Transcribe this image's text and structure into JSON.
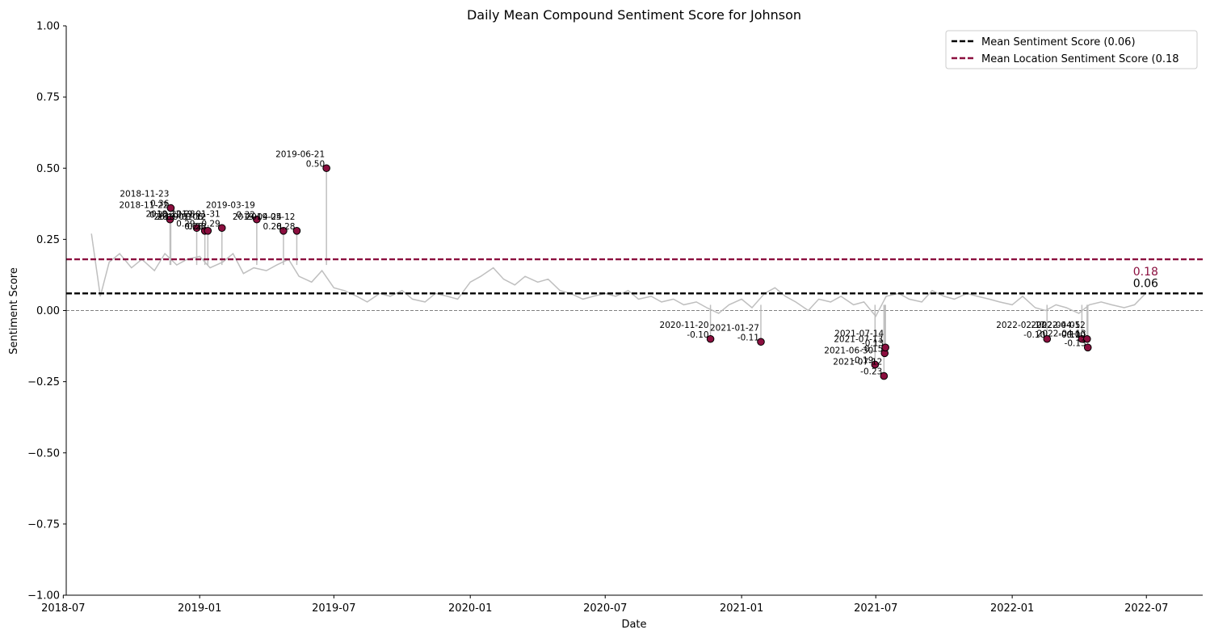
{
  "chart_data": {
    "type": "line",
    "title": "Daily Mean Compound Sentiment Score for Johnson",
    "xlabel": "Date",
    "ylabel": "Sentiment Score",
    "ylim": [
      -1.0,
      1.0
    ],
    "xlim": [
      "2018-07-05",
      "2022-09-15"
    ],
    "y_ticks": [
      1.0,
      0.75,
      0.5,
      0.25,
      0.0,
      -0.25,
      -0.5,
      -0.75,
      -1.0
    ],
    "y_tick_labels": [
      "1.00",
      "0.75",
      "0.50",
      "0.25",
      "0.00",
      "−0.25",
      "−0.50",
      "−0.75",
      "−1.00"
    ],
    "x_ticks": [
      "2018-07-01",
      "2019-01-01",
      "2019-07-01",
      "2020-01-01",
      "2020-07-01",
      "2021-01-01",
      "2021-07-01",
      "2022-01-01",
      "2022-07-01"
    ],
    "x_tick_labels": [
      "2018-07",
      "2019-01",
      "2019-07",
      "2020-01",
      "2020-07",
      "2021-01",
      "2021-07",
      "2022-01",
      "2022-07"
    ],
    "grid": false,
    "legend_position": "top-right",
    "colors": {
      "daily_line": "#bfbfbf",
      "mean_line": "#000000",
      "location_mean_line": "#8b0f3f",
      "zero_line": "#808080",
      "marker_fill": "#8b0f3f",
      "marker_edge": "#000000"
    },
    "series": [
      {
        "name": "",
        "kind": "daily",
        "x": [
          "2018-08-08",
          "2018-08-20",
          "2018-09-01",
          "2018-09-15",
          "2018-10-01",
          "2018-10-15",
          "2018-11-01",
          "2018-11-15",
          "2018-12-01",
          "2018-12-15",
          "2019-01-01",
          "2019-01-15",
          "2019-02-01",
          "2019-02-15",
          "2019-03-01",
          "2019-03-15",
          "2019-04-01",
          "2019-04-15",
          "2019-05-01",
          "2019-05-15",
          "2019-06-01",
          "2019-06-15",
          "2019-07-01",
          "2019-07-15",
          "2019-08-01",
          "2019-08-15",
          "2019-09-01",
          "2019-09-15",
          "2019-10-01",
          "2019-10-15",
          "2019-11-01",
          "2019-11-15",
          "2019-12-01",
          "2019-12-15",
          "2020-01-01",
          "2020-01-15",
          "2020-02-01",
          "2020-02-15",
          "2020-03-01",
          "2020-03-15",
          "2020-04-01",
          "2020-04-15",
          "2020-05-01",
          "2020-05-15",
          "2020-06-01",
          "2020-06-15",
          "2020-07-01",
          "2020-07-15",
          "2020-08-01",
          "2020-08-15",
          "2020-09-01",
          "2020-09-15",
          "2020-10-01",
          "2020-10-15",
          "2020-11-01",
          "2020-11-15",
          "2020-12-01",
          "2020-12-15",
          "2021-01-01",
          "2021-01-15",
          "2021-02-01",
          "2021-02-15",
          "2021-03-01",
          "2021-03-15",
          "2021-04-01",
          "2021-04-15",
          "2021-05-01",
          "2021-05-15",
          "2021-06-01",
          "2021-06-15",
          "2021-07-01",
          "2021-07-15",
          "2021-08-01",
          "2021-08-15",
          "2021-09-01",
          "2021-09-15",
          "2021-10-01",
          "2021-10-15",
          "2021-11-01",
          "2021-11-15",
          "2021-12-01",
          "2021-12-15",
          "2022-01-01",
          "2022-01-15",
          "2022-02-01",
          "2022-02-15",
          "2022-03-01",
          "2022-03-15",
          "2022-04-01",
          "2022-04-15",
          "2022-05-01",
          "2022-05-15",
          "2022-06-01",
          "2022-06-15",
          "2022-06-30"
        ],
        "y": [
          0.27,
          0.05,
          0.17,
          0.2,
          0.15,
          0.18,
          0.14,
          0.2,
          0.16,
          0.18,
          0.19,
          0.15,
          0.17,
          0.2,
          0.13,
          0.15,
          0.14,
          0.16,
          0.18,
          0.12,
          0.1,
          0.14,
          0.08,
          0.07,
          0.05,
          0.03,
          0.06,
          0.05,
          0.07,
          0.04,
          0.03,
          0.06,
          0.05,
          0.04,
          0.1,
          0.12,
          0.15,
          0.11,
          0.09,
          0.12,
          0.1,
          0.11,
          0.07,
          0.06,
          0.04,
          0.05,
          0.06,
          0.05,
          0.07,
          0.04,
          0.05,
          0.03,
          0.04,
          0.02,
          0.03,
          0.01,
          -0.01,
          0.02,
          0.04,
          0.01,
          0.06,
          0.08,
          0.05,
          0.03,
          0.0,
          0.04,
          0.03,
          0.05,
          0.02,
          0.03,
          -0.02,
          0.05,
          0.06,
          0.04,
          0.03,
          0.07,
          0.05,
          0.04,
          0.06,
          0.05,
          0.04,
          0.03,
          0.02,
          0.05,
          0.01,
          0.0,
          0.02,
          0.01,
          -0.01,
          0.02,
          0.03,
          0.02,
          0.01,
          0.02,
          0.06
        ]
      },
      {
        "name": "Mean Sentiment Score (0.06)",
        "kind": "hline",
        "value": 0.06,
        "style": "dashed",
        "end_label": "0.06"
      },
      {
        "name": "Mean Location Sentiment Score (0.18",
        "kind": "hline",
        "value": 0.18,
        "style": "dashed",
        "end_label": "0.18"
      },
      {
        "name": "",
        "kind": "zero",
        "value": 0.0,
        "style": "dashed"
      }
    ],
    "highlights": [
      {
        "date": "2018-11-23",
        "value": 0.36,
        "date_label": "2018-11-23",
        "value_label": "0.36"
      },
      {
        "date": "2018-11-22",
        "value": 0.32,
        "date_label": "2018-11-22",
        "value_label": "0.32"
      },
      {
        "date": "2018-12-28",
        "value": 0.29,
        "date_label": "2018-12-28",
        "value_label": "0.29"
      },
      {
        "date": "2019-01-08",
        "value": 0.28,
        "date_label": "2019-01-08",
        "value_label": "0.28"
      },
      {
        "date": "2019-01-12",
        "value": 0.28,
        "date_label": "2019-01-12",
        "value_label": "0.28"
      },
      {
        "date": "2019-01-31",
        "value": 0.29,
        "date_label": "2019-01-31",
        "value_label": "0.29"
      },
      {
        "date": "2019-03-19",
        "value": 0.32,
        "date_label": "2019-03-19",
        "value_label": "0.32"
      },
      {
        "date": "2019-04-24",
        "value": 0.28,
        "date_label": "2019-04-24",
        "value_label": "0.28"
      },
      {
        "date": "2019-05-12",
        "value": 0.28,
        "date_label": "2019-05-12",
        "value_label": "0.28"
      },
      {
        "date": "2019-06-21",
        "value": 0.5,
        "date_label": "2019-06-21",
        "value_label": "0.50"
      },
      {
        "date": "2020-11-20",
        "value": -0.1,
        "date_label": "2020-11-20",
        "value_label": "-0.10"
      },
      {
        "date": "2021-01-27",
        "value": -0.11,
        "date_label": "2021-01-27",
        "value_label": "-0.11"
      },
      {
        "date": "2021-06-30",
        "value": -0.19,
        "date_label": "2021-06-30",
        "value_label": "-0.19"
      },
      {
        "date": "2021-07-12",
        "value": -0.23,
        "date_label": "2021-07-12",
        "value_label": "-0.23"
      },
      {
        "date": "2021-07-13",
        "value": -0.15,
        "date_label": "2021-07-13",
        "value_label": "-0.15"
      },
      {
        "date": "2021-07-14",
        "value": -0.13,
        "date_label": "2021-07-14",
        "value_label": "-0.13"
      },
      {
        "date": "2022-02-17",
        "value": -0.1,
        "date_label": "2022-02-17",
        "value_label": "-0.10"
      },
      {
        "date": "2022-04-05",
        "value": -0.1,
        "date_label": "2022-04-05",
        "value_label": "-0.10"
      },
      {
        "date": "2022-04-12",
        "value": -0.1,
        "date_label": "2022-04-12",
        "value_label": "-0.10"
      },
      {
        "date": "2022-04-13",
        "value": -0.13,
        "date_label": "2022-04-13",
        "value_label": "-0.13"
      }
    ]
  }
}
